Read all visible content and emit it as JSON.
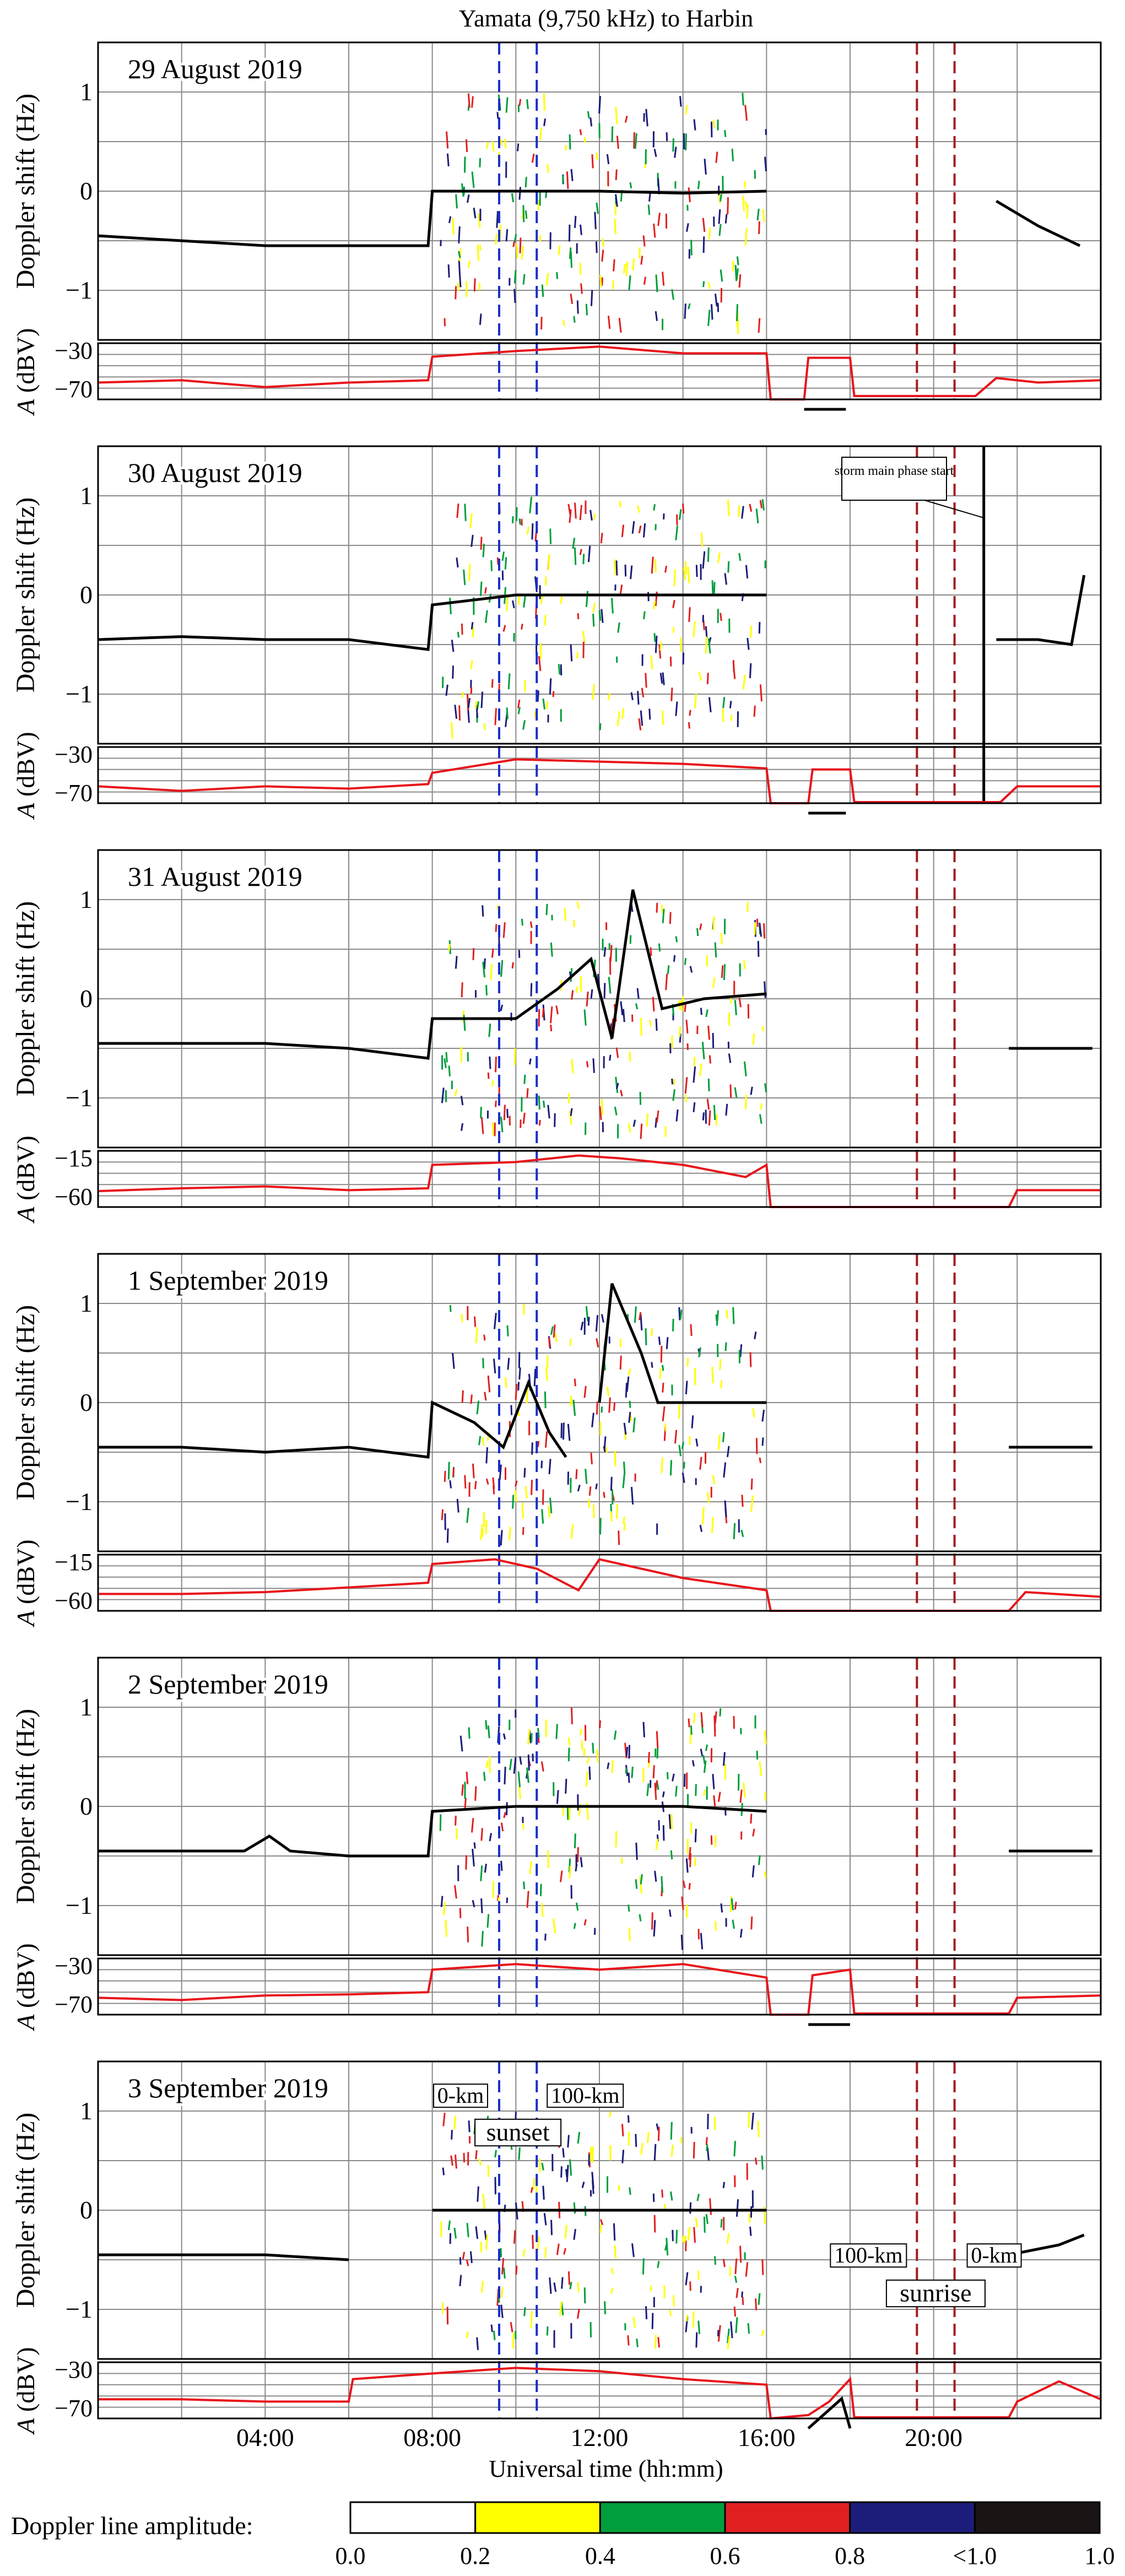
{
  "chart_data": {
    "type": "line",
    "title": "Yamata (9,750 kHz) to Harbin",
    "xlabel": "Universal time (hh:mm)",
    "x_range_hours": [
      0,
      24
    ],
    "x_ticks": [
      {
        "hour": 4,
        "label": "04:00"
      },
      {
        "hour": 8,
        "label": "08:00"
      },
      {
        "hour": 12,
        "label": "12:00"
      },
      {
        "hour": 16,
        "label": "16:00"
      },
      {
        "hour": 20,
        "label": "20:00"
      }
    ],
    "grid": true,
    "doppler_ylabel": "Doppler shift (Hz)",
    "doppler_ylim": [
      -1.5,
      1.5
    ],
    "doppler_ticks": [
      {
        "v": 1,
        "label": "1"
      },
      {
        "v": 0,
        "label": "0"
      },
      {
        "v": -1,
        "label": "−1"
      }
    ],
    "amp_ylabel_var": "A",
    "amp_ylabel_unit": " (dBV)",
    "colors": {
      "doppler_trace": "#000000",
      "amplitude_trace": "#e8141b",
      "evening_terminator": "#1a2fc9",
      "morning_terminator": "#a01e1e",
      "storm_line": "#000000"
    },
    "terminator_lines_hours": {
      "sunset_0km": 9.6,
      "sunset_100km": 10.5,
      "sunrise_100km": 19.6,
      "sunrise_0km": 20.5
    },
    "panels": [
      {
        "date": "29 August 2019",
        "amp_ticks": [
          "−30",
          "−70"
        ],
        "amp_ylim": [
          -75,
          -25
        ],
        "doppler_trace": [
          [
            0.0,
            -0.45
          ],
          [
            2.0,
            -0.5
          ],
          [
            4.0,
            -0.55
          ],
          [
            6.0,
            -0.55
          ],
          [
            7.9,
            -0.55
          ],
          [
            8.0,
            0.0
          ],
          [
            10.0,
            0.0
          ],
          [
            12.0,
            0.0
          ],
          [
            14.0,
            -0.02
          ],
          [
            16.0,
            0.0
          ],
          [
            16.1,
            null
          ],
          [
            16.9,
            -2.2
          ],
          [
            17.9,
            -2.2
          ],
          [
            18.0,
            null
          ],
          [
            21.5,
            -0.1
          ],
          [
            22.5,
            -0.35
          ],
          [
            23.5,
            -0.55
          ]
        ],
        "amplitude_trace": [
          [
            0.0,
            -60
          ],
          [
            2.0,
            -58
          ],
          [
            4.0,
            -64
          ],
          [
            6.0,
            -60
          ],
          [
            7.9,
            -58
          ],
          [
            8.0,
            -37
          ],
          [
            10.0,
            -32
          ],
          [
            12.0,
            -28
          ],
          [
            14.0,
            -34
          ],
          [
            16.0,
            -34
          ],
          [
            16.1,
            -75
          ],
          [
            16.9,
            -75
          ],
          [
            17.0,
            -38
          ],
          [
            18.0,
            -38
          ],
          [
            18.1,
            -72
          ],
          [
            21.0,
            -72
          ],
          [
            21.5,
            -56
          ],
          [
            22.5,
            -60
          ],
          [
            24.0,
            -58
          ]
        ]
      },
      {
        "date": "30 August 2019",
        "amp_ticks": [
          "−30",
          "−70"
        ],
        "amp_ylim": [
          -75,
          -25
        ],
        "storm_annotation": "storm main phase start",
        "storm_hour": 21.2,
        "doppler_trace": [
          [
            0.0,
            -0.45
          ],
          [
            2.0,
            -0.42
          ],
          [
            4.0,
            -0.45
          ],
          [
            6.0,
            -0.45
          ],
          [
            7.9,
            -0.55
          ],
          [
            8.0,
            -0.1
          ],
          [
            10.0,
            0.0
          ],
          [
            12.0,
            0.0
          ],
          [
            14.0,
            0.0
          ],
          [
            16.0,
            0.0
          ],
          [
            16.1,
            null
          ],
          [
            17.0,
            -2.2
          ],
          [
            17.9,
            -2.2
          ],
          [
            18.0,
            null
          ],
          [
            21.5,
            -0.45
          ],
          [
            22.5,
            -0.45
          ],
          [
            23.3,
            -0.5
          ],
          [
            23.6,
            0.2
          ]
        ],
        "amplitude_trace": [
          [
            0.0,
            -60
          ],
          [
            2.0,
            -64
          ],
          [
            4.0,
            -60
          ],
          [
            6.0,
            -62
          ],
          [
            7.9,
            -58
          ],
          [
            8.0,
            -48
          ],
          [
            10.0,
            -36
          ],
          [
            12.0,
            -38
          ],
          [
            14.0,
            -40
          ],
          [
            16.0,
            -44
          ],
          [
            16.1,
            -75
          ],
          [
            17.0,
            -75
          ],
          [
            17.1,
            -45
          ],
          [
            18.0,
            -45
          ],
          [
            18.1,
            -74
          ],
          [
            21.6,
            -74
          ],
          [
            22.0,
            -60
          ],
          [
            24.0,
            -60
          ]
        ]
      },
      {
        "date": "31 August 2019",
        "amp_ticks": [
          "−15",
          "−60"
        ],
        "amp_ylim": [
          -70,
          -10
        ],
        "doppler_trace": [
          [
            0.0,
            -0.45
          ],
          [
            2.0,
            -0.45
          ],
          [
            4.0,
            -0.45
          ],
          [
            6.0,
            -0.5
          ],
          [
            7.9,
            -0.6
          ],
          [
            8.0,
            -0.2
          ],
          [
            10.0,
            -0.2
          ],
          [
            11.0,
            0.1
          ],
          [
            11.8,
            0.4
          ],
          [
            12.3,
            -0.4
          ],
          [
            12.8,
            1.1
          ],
          [
            13.5,
            -0.1
          ],
          [
            14.5,
            0.0
          ],
          [
            16.0,
            0.05
          ],
          [
            16.1,
            null
          ],
          [
            21.8,
            -0.5
          ],
          [
            23.0,
            -0.5
          ],
          [
            23.8,
            -0.5
          ]
        ],
        "amplitude_trace": [
          [
            0.0,
            -53
          ],
          [
            2.0,
            -50
          ],
          [
            4.0,
            -48
          ],
          [
            6.0,
            -52
          ],
          [
            7.9,
            -50
          ],
          [
            8.0,
            -25
          ],
          [
            10.0,
            -22
          ],
          [
            11.5,
            -15
          ],
          [
            12.5,
            -18
          ],
          [
            14.0,
            -25
          ],
          [
            15.5,
            -38
          ],
          [
            16.0,
            -25
          ],
          [
            16.1,
            -70
          ],
          [
            21.8,
            -70
          ],
          [
            22.0,
            -52
          ],
          [
            24.0,
            -52
          ]
        ]
      },
      {
        "date": "1 September 2019",
        "amp_ticks": [
          "−15",
          "−60"
        ],
        "amp_ylim": [
          -70,
          -10
        ],
        "doppler_trace": [
          [
            0.0,
            -0.45
          ],
          [
            2.0,
            -0.45
          ],
          [
            4.0,
            -0.5
          ],
          [
            6.0,
            -0.45
          ],
          [
            7.9,
            -0.55
          ],
          [
            8.0,
            0.0
          ],
          [
            9.0,
            -0.2
          ],
          [
            9.7,
            -0.45
          ],
          [
            10.3,
            0.2
          ],
          [
            10.8,
            -0.3
          ],
          [
            11.2,
            -0.55
          ],
          [
            11.3,
            null
          ],
          [
            12.0,
            0.0
          ],
          [
            12.3,
            1.2
          ],
          [
            13.0,
            0.5
          ],
          [
            13.4,
            0.0
          ],
          [
            16.0,
            0.0
          ],
          [
            16.1,
            null
          ],
          [
            21.8,
            -0.45
          ],
          [
            23.0,
            -0.45
          ],
          [
            23.8,
            -0.45
          ]
        ],
        "amplitude_trace": [
          [
            0.0,
            -52
          ],
          [
            2.0,
            -52
          ],
          [
            4.0,
            -50
          ],
          [
            6.0,
            -45
          ],
          [
            7.9,
            -40
          ],
          [
            8.0,
            -20
          ],
          [
            9.5,
            -15
          ],
          [
            10.5,
            -25
          ],
          [
            11.5,
            -48
          ],
          [
            12.0,
            -15
          ],
          [
            14.0,
            -35
          ],
          [
            16.0,
            -48
          ],
          [
            16.1,
            -70
          ],
          [
            21.8,
            -70
          ],
          [
            22.2,
            -50
          ],
          [
            24.0,
            -55
          ]
        ]
      },
      {
        "date": "2 September 2019",
        "amp_ticks": [
          "−30",
          "−70"
        ],
        "amp_ylim": [
          -75,
          -25
        ],
        "doppler_trace": [
          [
            0.0,
            -0.45
          ],
          [
            2.0,
            -0.45
          ],
          [
            3.5,
            -0.45
          ],
          [
            4.1,
            -0.3
          ],
          [
            4.6,
            -0.45
          ],
          [
            6.0,
            -0.5
          ],
          [
            7.9,
            -0.5
          ],
          [
            8.0,
            -0.05
          ],
          [
            10.0,
            0.0
          ],
          [
            12.0,
            0.0
          ],
          [
            14.0,
            0.0
          ],
          [
            16.0,
            -0.05
          ],
          [
            16.1,
            null
          ],
          [
            17.0,
            -2.2
          ],
          [
            18.0,
            -2.2
          ],
          [
            18.1,
            null
          ],
          [
            21.8,
            -0.45
          ],
          [
            23.0,
            -0.45
          ],
          [
            23.8,
            -0.45
          ]
        ],
        "amplitude_trace": [
          [
            0.0,
            -60
          ],
          [
            2.0,
            -62
          ],
          [
            4.0,
            -58
          ],
          [
            6.0,
            -57
          ],
          [
            7.9,
            -55
          ],
          [
            8.0,
            -35
          ],
          [
            10.0,
            -30
          ],
          [
            12.0,
            -35
          ],
          [
            14.0,
            -30
          ],
          [
            16.0,
            -42
          ],
          [
            16.1,
            -75
          ],
          [
            17.0,
            -75
          ],
          [
            17.1,
            -40
          ],
          [
            18.0,
            -35
          ],
          [
            18.1,
            -74
          ],
          [
            21.8,
            -74
          ],
          [
            22.0,
            -60
          ],
          [
            24.0,
            -58
          ]
        ]
      },
      {
        "date": "3 September 2019",
        "amp_ticks": [
          "−30",
          "−70"
        ],
        "amp_ylim": [
          -75,
          -25
        ],
        "labels": {
          "sunset_0km": "0-km",
          "sunset_100km": "100-km",
          "sunset": "sunset",
          "sunrise_100km": "100-km",
          "sunrise_0km": "0-km",
          "sunrise": "sunrise"
        },
        "doppler_trace": [
          [
            0.0,
            -0.45
          ],
          [
            2.0,
            -0.45
          ],
          [
            4.0,
            -0.45
          ],
          [
            6.0,
            -0.5
          ],
          [
            6.1,
            null
          ],
          [
            8.0,
            0.0
          ],
          [
            10.0,
            0.0
          ],
          [
            12.0,
            0.0
          ],
          [
            14.0,
            0.0
          ],
          [
            16.0,
            0.0
          ],
          [
            16.1,
            null
          ],
          [
            17.0,
            -2.2
          ],
          [
            17.8,
            -1.9
          ],
          [
            18.0,
            -2.2
          ],
          [
            18.1,
            null
          ],
          [
            21.8,
            -0.45
          ],
          [
            23.0,
            -0.35
          ],
          [
            23.6,
            -0.25
          ]
        ],
        "amplitude_trace": [
          [
            0.0,
            -58
          ],
          [
            2.0,
            -58
          ],
          [
            4.0,
            -60
          ],
          [
            6.0,
            -60
          ],
          [
            6.1,
            -40
          ],
          [
            8.0,
            -35
          ],
          [
            10.0,
            -30
          ],
          [
            12.0,
            -33
          ],
          [
            14.0,
            -40
          ],
          [
            16.0,
            -45
          ],
          [
            16.1,
            -75
          ],
          [
            17.0,
            -72
          ],
          [
            17.5,
            -60
          ],
          [
            18.0,
            -40
          ],
          [
            18.1,
            -74
          ],
          [
            21.8,
            -74
          ],
          [
            22.0,
            -60
          ],
          [
            23.0,
            -42
          ],
          [
            24.0,
            -58
          ]
        ]
      }
    ],
    "colorbar": {
      "label": "Doppler line amplitude:",
      "ticks": [
        "0.0",
        "0.2",
        "0.4",
        "0.6",
        "0.8",
        "<1.0",
        "1.0"
      ],
      "colors": [
        "#ffffff",
        "#ffff00",
        "#009e3c",
        "#e02020",
        "#1c1c7a",
        "#1a1414"
      ]
    }
  }
}
